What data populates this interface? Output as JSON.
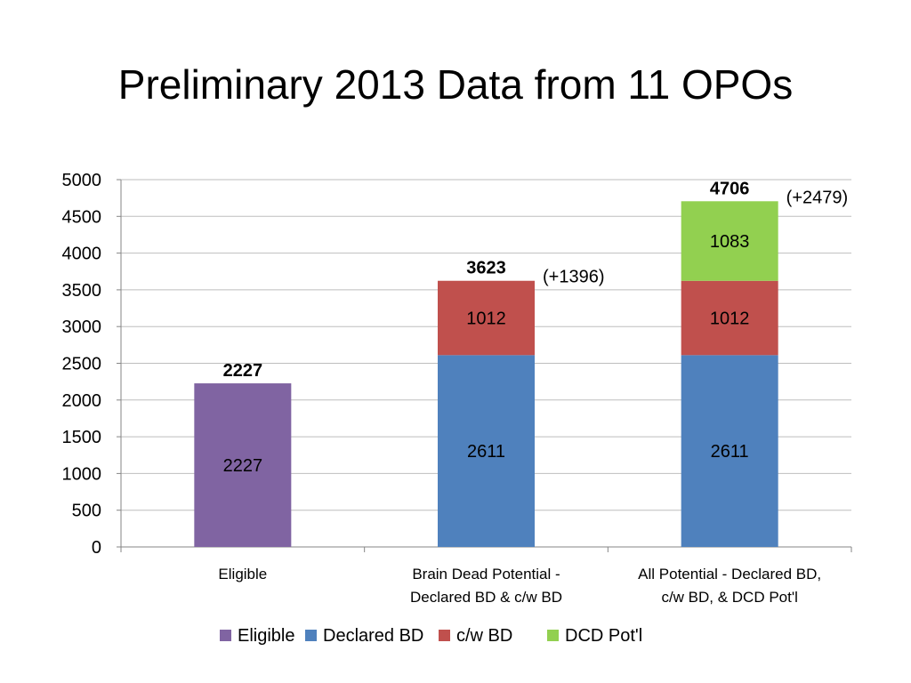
{
  "title": "Preliminary 2013 Data from 11 OPOs",
  "chart_data": {
    "type": "bar",
    "stacked": true,
    "categories": [
      [
        "Eligible"
      ],
      [
        "Brain Dead Potential -",
        "Declared BD & c/w BD"
      ],
      [
        "All Potential - Declared BD,",
        "c/w BD, & DCD Pot'l"
      ]
    ],
    "series": [
      {
        "name": "Eligible",
        "color": "#8064A2",
        "values": [
          2227,
          null,
          null
        ]
      },
      {
        "name": "Declared BD",
        "color": "#4F81BD",
        "values": [
          null,
          2611,
          2611
        ]
      },
      {
        "name": "c/w BD",
        "color": "#C0504D",
        "values": [
          null,
          1012,
          1012
        ]
      },
      {
        "name": "DCD Pot'l",
        "color": "#92D050",
        "values": [
          null,
          null,
          1083
        ]
      }
    ],
    "totals": [
      "2227",
      "3623",
      "4706"
    ],
    "annotations": [
      "",
      "(+1396)",
      "(+2479)"
    ],
    "ylim": [
      0,
      5000
    ],
    "yticks": [
      0,
      500,
      1000,
      1500,
      2000,
      2500,
      3000,
      3500,
      4000,
      4500,
      5000
    ],
    "grid": true,
    "legend_position": "bottom"
  }
}
